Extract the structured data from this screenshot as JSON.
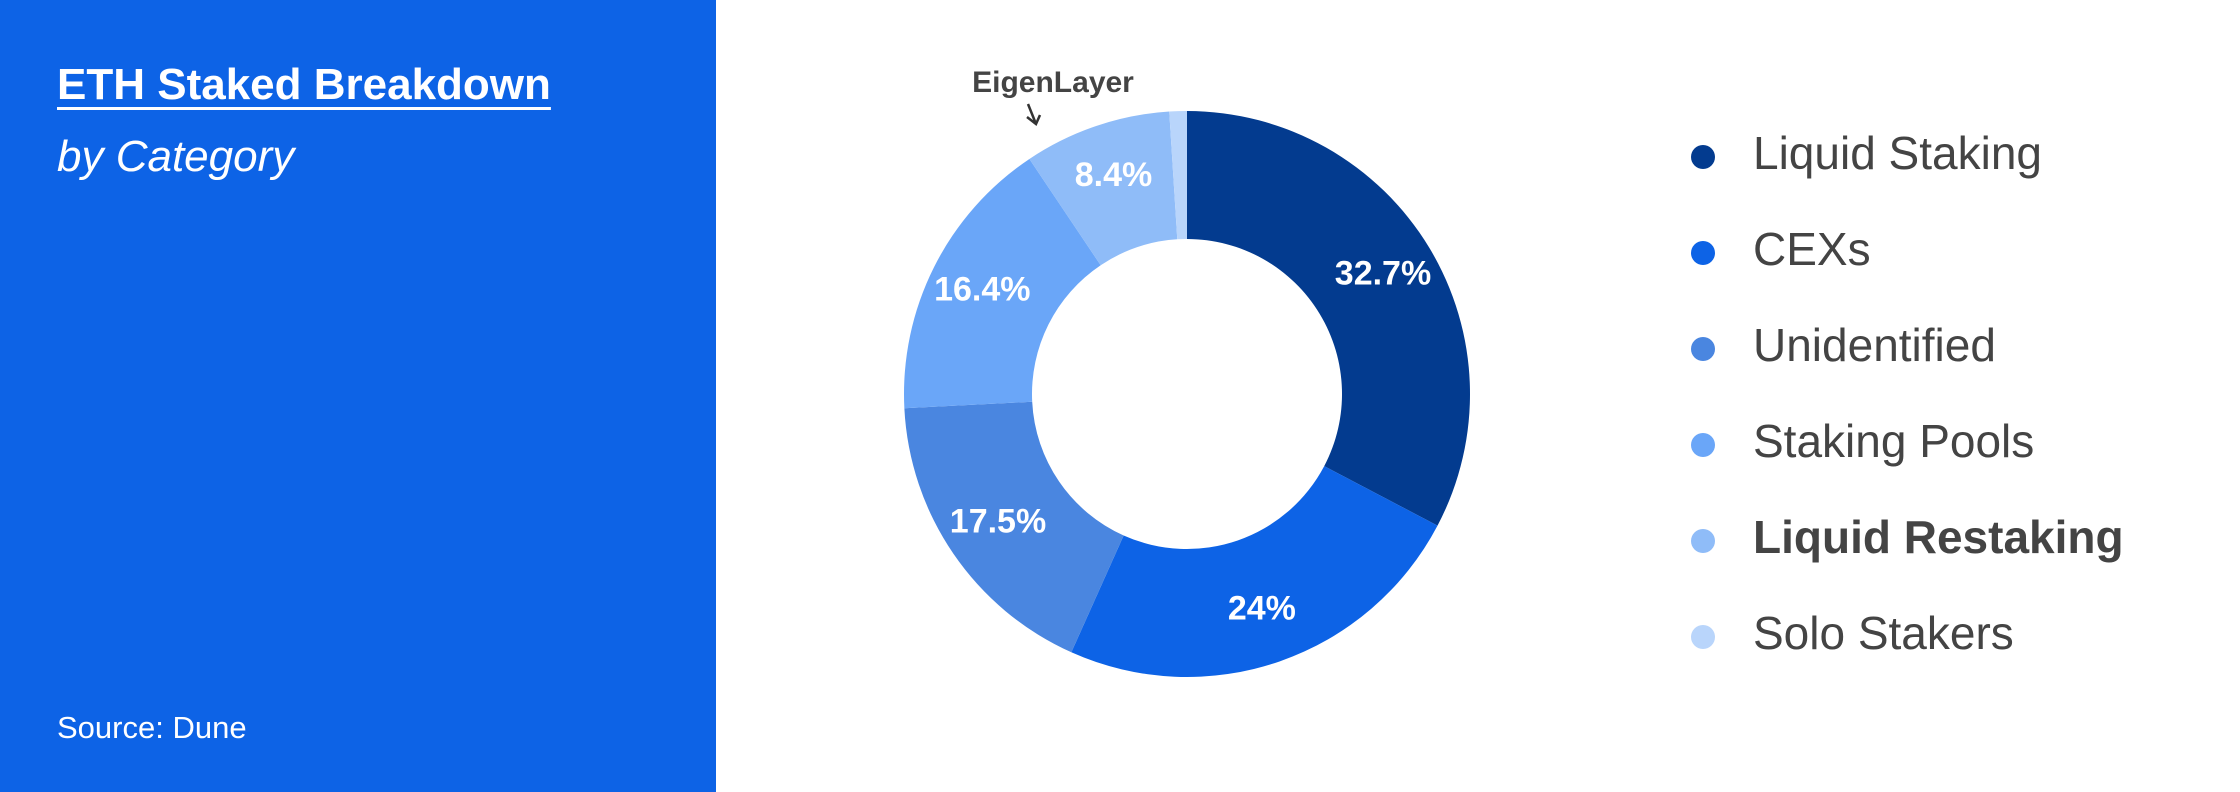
{
  "chart_data": {
    "type": "donut",
    "title": "ETH Staked Breakdown",
    "subtitle": "by Category",
    "source": "Source: Dune",
    "annotation": "EigenLayer",
    "categories": [
      "Liquid Staking",
      "CEXs",
      "Unidentified",
      "Staking Pools",
      "Liquid Restaking",
      "Solo Stakers"
    ],
    "values": [
      32.7,
      24,
      17.5,
      16.4,
      8.4,
      1.0
    ],
    "value_labels": [
      "32.7%",
      "24%",
      "17.5%",
      "16.4%",
      "8.4%",
      null
    ],
    "colors": [
      "#033b8f",
      "#0d63e6",
      "#4a86e0",
      "#6aa6f8",
      "#8fbcf8",
      "#b9d5fb"
    ],
    "legend_bold": [
      false,
      false,
      false,
      false,
      true,
      false
    ]
  }
}
